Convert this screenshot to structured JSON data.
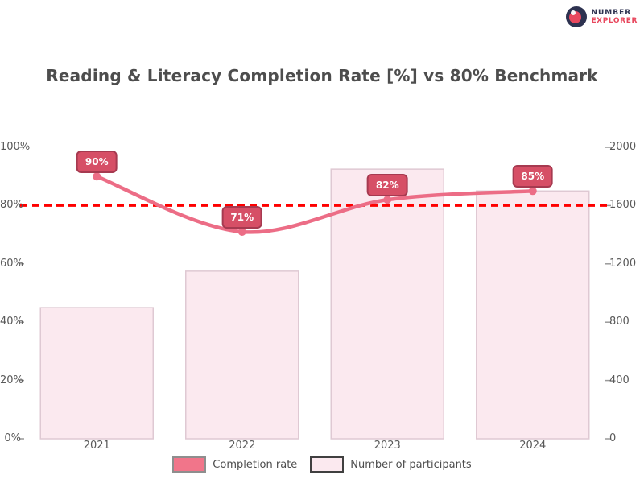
{
  "logo": {
    "line1": "NUMBER",
    "line2": "EXPLORER"
  },
  "title": "Reading & Literacy Completion Rate [%] vs 80% Benchmark",
  "chart_data": {
    "type": "bar",
    "combo": "bars + smoothed line, dual y-axis, no gridlines, white background",
    "categories": [
      "2021",
      "2022",
      "2023",
      "2024"
    ],
    "series": [
      {
        "name": "Completion rate",
        "type": "line",
        "y_axis": "left",
        "values": [
          90,
          71,
          82,
          85
        ],
        "labels": [
          "90%",
          "71%",
          "82%",
          "85%"
        ],
        "color": "#ec6d86",
        "marker": "circle"
      },
      {
        "name": "Number of participants",
        "type": "bar",
        "y_axis": "right",
        "values": [
          900,
          1150,
          1850,
          1700
        ],
        "color": "#fbe9ef",
        "border_color": "#dfc9d3"
      }
    ],
    "benchmark_line": {
      "value": 80,
      "y_axis": "left",
      "color": "#fe0000",
      "style": "dashed"
    },
    "axes": {
      "left": {
        "min": 0,
        "max": 100,
        "tick_labels": [
          "100%",
          "80%",
          "60%",
          "40%",
          "20%",
          "0%"
        ]
      },
      "right": {
        "min": 0,
        "max": 2000,
        "tick_labels": [
          "2000",
          "1600",
          "1200",
          "800",
          "400",
          "0"
        ]
      }
    },
    "legend_position": "bottom-center",
    "legend": [
      {
        "label": "Completion rate",
        "swatch_color": "#f1758a",
        "swatch_border": "#8e8e8e"
      },
      {
        "label": "Number of participants",
        "swatch_color": "#fbe9ef",
        "swatch_border": "#404040"
      }
    ],
    "grid": false,
    "badge_style": {
      "fill": "#d64f66",
      "border": "#a63a50",
      "text": "#ffffff"
    },
    "tick_color": "#999999",
    "text_color": "#595959"
  }
}
